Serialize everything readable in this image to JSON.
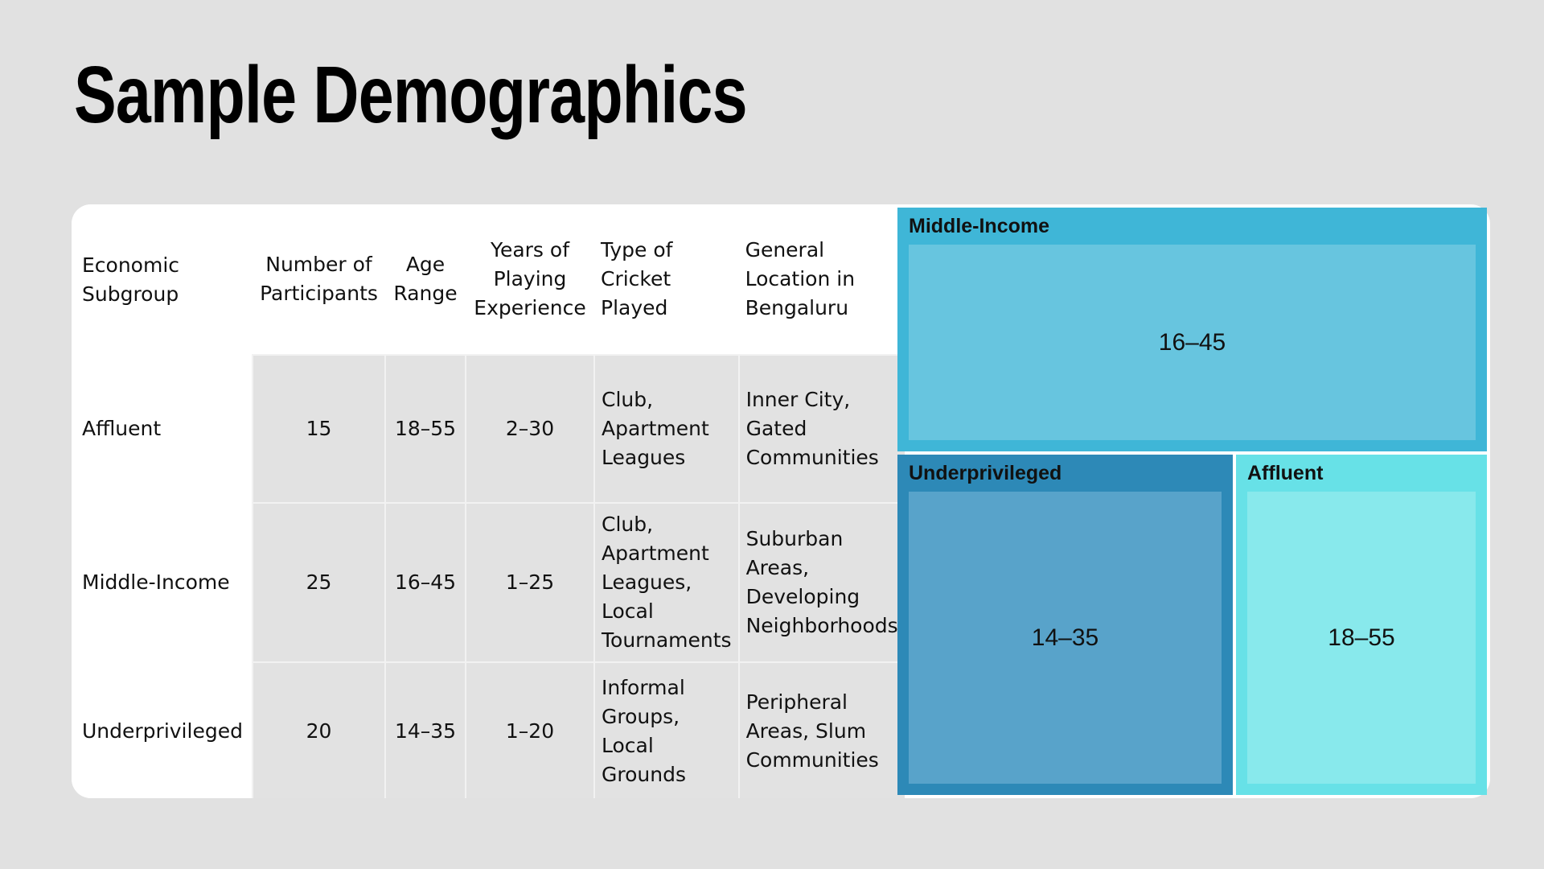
{
  "title": "Sample Demographics",
  "table": {
    "headers": {
      "subgroup": "Economic Subgroup",
      "participants": "Number of Participants",
      "age": "Age Range",
      "experience": "Years of Playing Experience",
      "cricket": "Type of Cricket Played",
      "location": "General Location in Bengaluru"
    },
    "rows": [
      {
        "subgroup": "Affluent",
        "participants": "15",
        "age": "18–55",
        "experience": "2–30",
        "cricket": "Club, Apartment Leagues",
        "location": "Inner City, Gated Communities"
      },
      {
        "subgroup": "Middle-Income",
        "participants": "25",
        "age": "16–45",
        "experience": "1–25",
        "cricket": "Club, Apartment Leagues, Local Tournaments",
        "location": "Suburban Areas, Developing Neighborhoods"
      },
      {
        "subgroup": "Underprivileged",
        "participants": "20",
        "age": "14–35",
        "experience": "1–20",
        "cricket": "Informal Groups, Local Grounds",
        "location": "Peripheral Areas, Slum Communities"
      }
    ]
  },
  "chart_data": {
    "type": "treemap",
    "size_metric": "Number of Participants",
    "groups": [
      {
        "name": "Middle-Income",
        "value": 25,
        "label": "16–45",
        "color": "#3fb6d7",
        "leaf_color": "#67c5df"
      },
      {
        "name": "Underprivileged",
        "value": 20,
        "label": "14–35",
        "color": "#2d89b7",
        "leaf_color": "#58a3ca"
      },
      {
        "name": "Affluent",
        "value": 15,
        "label": "18–55",
        "color": "#67e1e7",
        "leaf_color": "#88e9ec"
      }
    ]
  }
}
